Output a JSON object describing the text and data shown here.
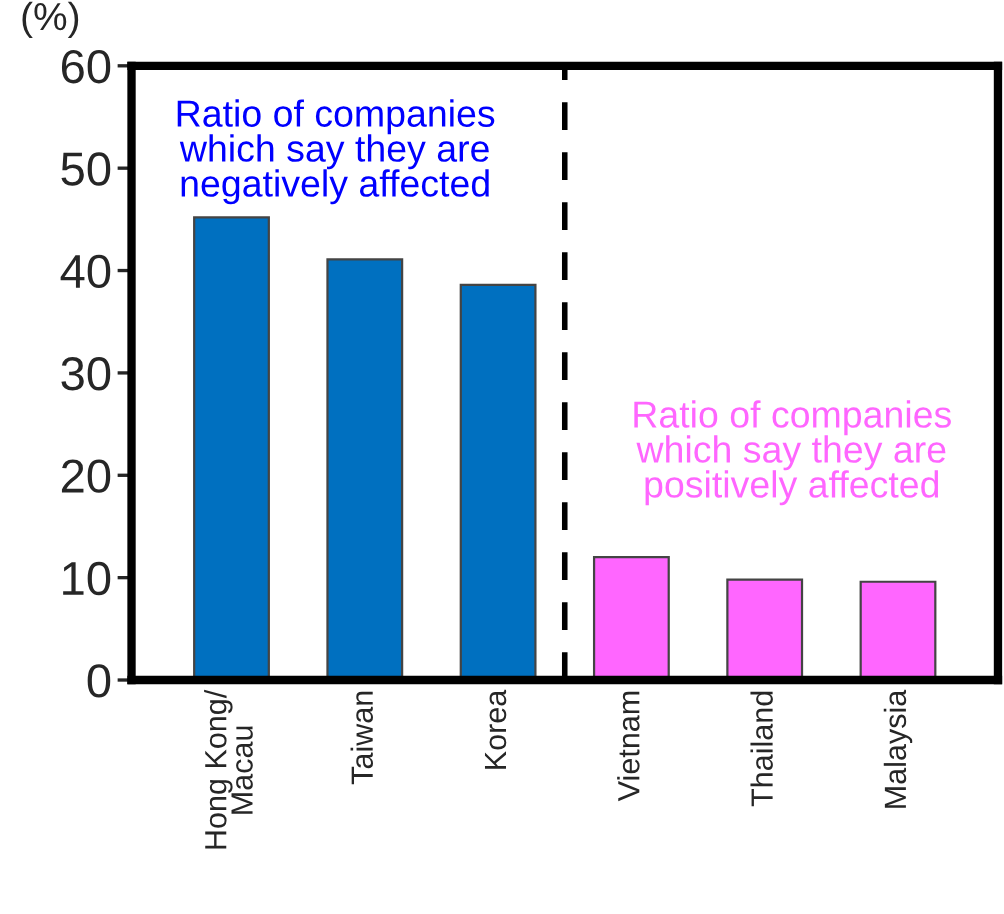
{
  "chart_data": {
    "type": "bar",
    "ylabel": "(%)",
    "categories": [
      "Hong Kong/\nMacau",
      "Taiwan",
      "Korea",
      "Vietnam",
      "Thailand",
      "Malaysia"
    ],
    "values": [
      45.2,
      41.1,
      38.6,
      12.0,
      9.8,
      9.6
    ],
    "colors": [
      "#0070c0",
      "#0070c0",
      "#0070c0",
      "#ff66ff",
      "#ff66ff",
      "#ff66ff"
    ],
    "ylim": [
      0,
      60
    ],
    "yticks": [
      0,
      10,
      20,
      30,
      40,
      50,
      60
    ],
    "grid": false,
    "annotations": [
      "Ratio of companies\nwhich say they are\nnegatively affected",
      "Ratio of companies\nwhich say they are\npositively affected"
    ]
  }
}
